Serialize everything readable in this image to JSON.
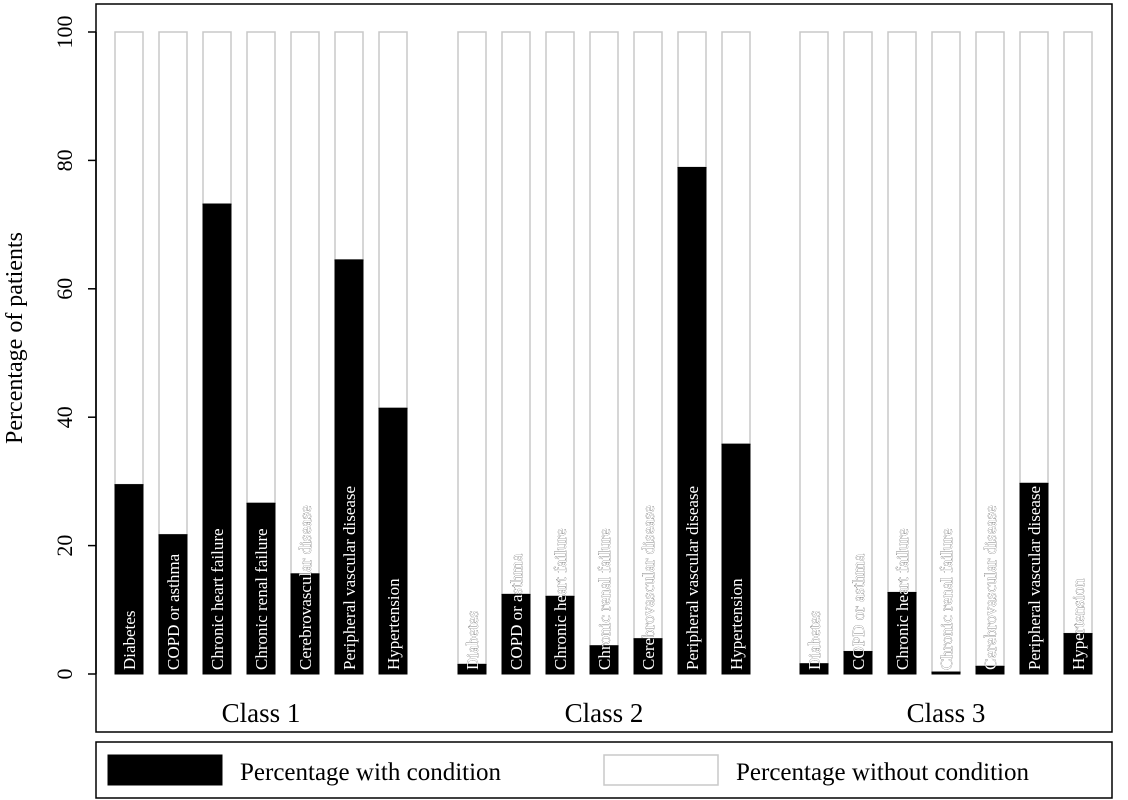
{
  "colors": {
    "with_condition": "#000000",
    "without_condition": "#ffffff",
    "without_condition_border": "#c8c8c8",
    "frame": "#000000"
  },
  "chart_data": {
    "type": "bar",
    "stacked": true,
    "title": "",
    "xlabel": "",
    "ylabel": "Percentage of patients",
    "ylim": [
      0,
      100
    ],
    "yticks": [
      0,
      20,
      40,
      60,
      80,
      100
    ],
    "grid": false,
    "legend_position": "bottom",
    "legend": [
      "Percentage with condition",
      "Percentage without condition"
    ],
    "groups": [
      {
        "label": "Class 1",
        "bars": [
          {
            "label": "Diabetes",
            "with": 29.5,
            "without": 70.5
          },
          {
            "label": "COPD or  asthma",
            "with": 21.7,
            "without": 78.3
          },
          {
            "label": "Chronic heart failure",
            "with": 73.2,
            "without": 26.8
          },
          {
            "label": "Chronic renal failure",
            "with": 26.6,
            "without": 73.4
          },
          {
            "label": "Cerebrovascular disease",
            "with": 15.6,
            "without": 84.4
          },
          {
            "label": "Peripheral vascular disease",
            "with": 64.5,
            "without": 35.5
          },
          {
            "label": "Hypertension",
            "with": 41.4,
            "without": 58.6
          }
        ]
      },
      {
        "label": "Class 2",
        "bars": [
          {
            "label": "Diabetes",
            "with": 1.5,
            "without": 98.5
          },
          {
            "label": "COPD or asthma",
            "with": 12.4,
            "without": 87.6
          },
          {
            "label": "Chronic heart failure",
            "with": 12.1,
            "without": 87.9
          },
          {
            "label": "Chronic renal failure",
            "with": 4.4,
            "without": 95.6
          },
          {
            "label": "Cerebrovascular disease",
            "with": 5.5,
            "without": 94.5
          },
          {
            "label": "Peripheral vascular disease",
            "with": 78.9,
            "without": 21.1
          },
          {
            "label": "Hypertension",
            "with": 35.8,
            "without": 64.2
          }
        ]
      },
      {
        "label": "Class 3",
        "bars": [
          {
            "label": "Diabetes",
            "with": 1.6,
            "without": 98.4
          },
          {
            "label": "COPD or asthma",
            "with": 3.5,
            "without": 96.5
          },
          {
            "label": "Chronic heart failure",
            "with": 12.7,
            "without": 87.3
          },
          {
            "label": "Chronic renal failure",
            "with": 0.3,
            "without": 99.7
          },
          {
            "label": "Cerebrovascular disease",
            "with": 1.2,
            "without": 98.8
          },
          {
            "label": "Peripheral vascular disease",
            "with": 29.7,
            "without": 70.3
          },
          {
            "label": "Hypertension",
            "with": 6.3,
            "without": 93.7
          }
        ]
      }
    ]
  }
}
